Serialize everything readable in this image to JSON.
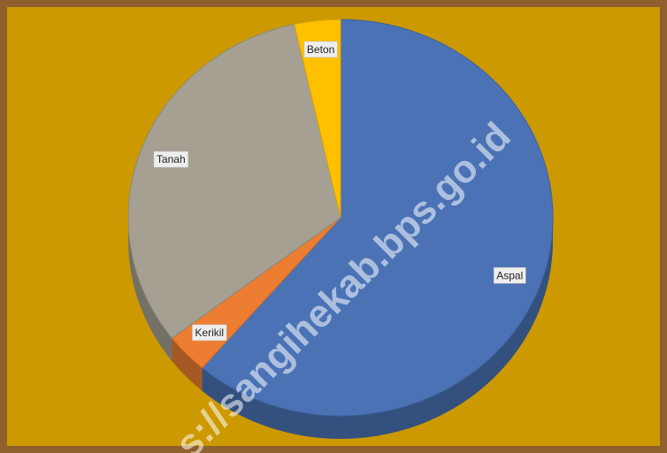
{
  "chart_data": {
    "type": "pie",
    "categories": [
      "Aspal",
      "Kerikil",
      "Tanah",
      "Beton"
    ],
    "values": [
      61.3,
      3.3,
      31.9,
      3.5
    ],
    "colors": [
      "#4a72b5",
      "#ed7d31",
      "#a5a092",
      "#ffc000"
    ],
    "watermark": "s://sangihekab.bps.go.id"
  }
}
